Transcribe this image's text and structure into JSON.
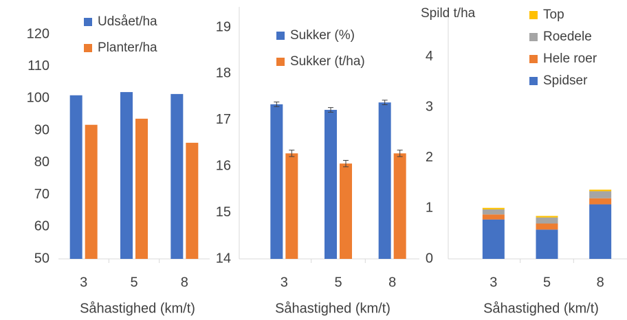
{
  "chart_data": [
    {
      "type": "bar",
      "x_label": "Såhastighed (km/t)",
      "categories": [
        "3",
        "5",
        "8"
      ],
      "ylim": [
        50,
        120
      ],
      "yticks": [
        50,
        60,
        70,
        80,
        90,
        100,
        110,
        120
      ],
      "series": [
        {
          "name": "Udsået/ha",
          "color": "#4472c4",
          "values": [
            101,
            102,
            101.4
          ]
        },
        {
          "name": "Planter/ha",
          "color": "#ed7d31",
          "values": [
            91.8,
            93.7,
            86.2
          ]
        }
      ]
    },
    {
      "type": "bar",
      "x_label": "Såhastighed (km/t)",
      "categories": [
        "3",
        "5",
        "8"
      ],
      "ylim": [
        14,
        19
      ],
      "yticks": [
        14,
        15,
        16,
        17,
        18,
        19
      ],
      "series": [
        {
          "name": "Sukker (%)",
          "color": "#4472c4",
          "values": [
            17.34,
            17.22,
            17.38
          ],
          "errors": [
            0.05,
            0.05,
            0.05
          ]
        },
        {
          "name": "Sukker (t/ha)",
          "color": "#ed7d31",
          "values": [
            16.28,
            16.06,
            16.28
          ],
          "errors": [
            0.07,
            0.07,
            0.07
          ]
        }
      ]
    },
    {
      "type": "stacked_bar",
      "x_label": "Såhastighed (km/t)",
      "y_label": "Spild t/ha",
      "categories": [
        "3",
        "5",
        "8"
      ],
      "ylim": [
        0,
        4.5
      ],
      "yticks": [
        0,
        1,
        2,
        3,
        4
      ],
      "series": [
        {
          "name": "Spidser",
          "color": "#4472c4",
          "values": [
            0.78,
            0.58,
            1.08
          ]
        },
        {
          "name": "Hele roer",
          "color": "#ed7d31",
          "values": [
            0.1,
            0.12,
            0.12
          ]
        },
        {
          "name": "Roedele",
          "color": "#a5a5a5",
          "values": [
            0.1,
            0.12,
            0.14
          ]
        },
        {
          "name": "Top",
          "color": "#ffc000",
          "values": [
            0.03,
            0.03,
            0.03
          ]
        }
      ]
    }
  ]
}
